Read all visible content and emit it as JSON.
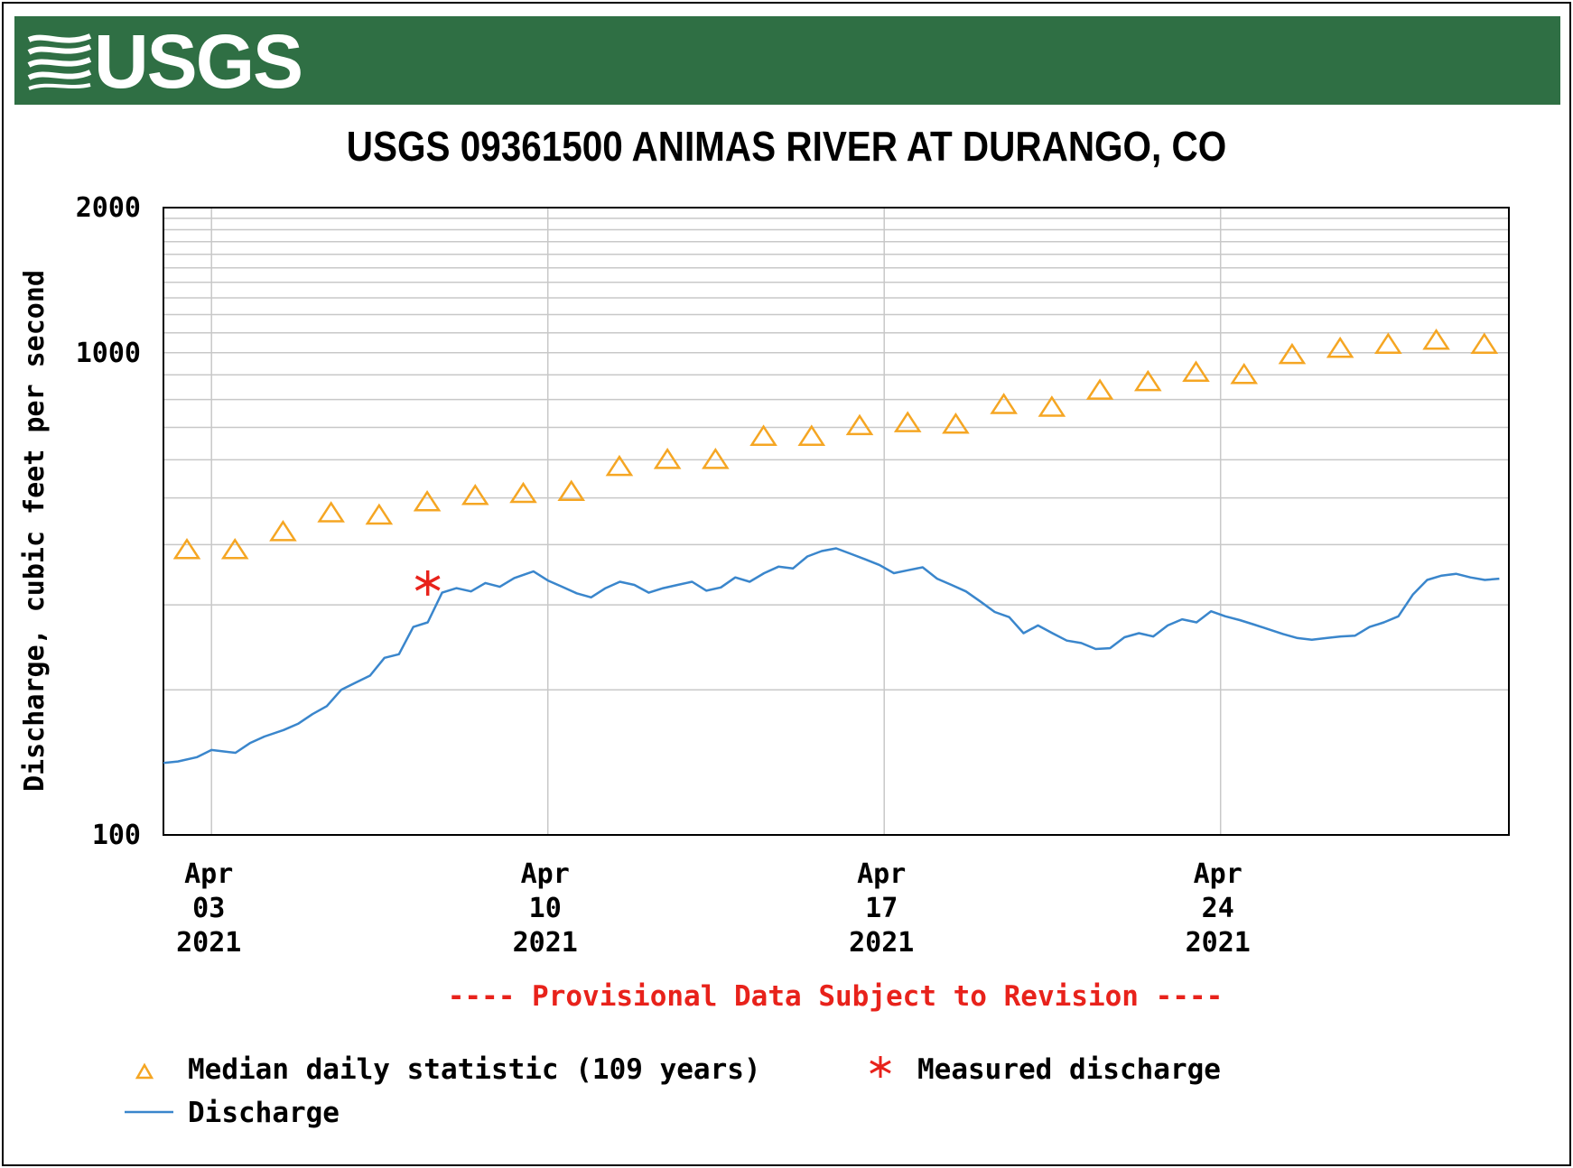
{
  "header": {
    "agency": "USGS"
  },
  "chart_data": {
    "type": "line",
    "title": "USGS 09361500 ANIMAS RIVER AT DURANGO, CO",
    "ylabel": "Discharge, cubic feet per second",
    "xlabel": "",
    "yscale": "log",
    "ylim": [
      100,
      2000
    ],
    "ytick_labels": [
      "100",
      "1000",
      "2000"
    ],
    "xlim": [
      "2021-04-02",
      "2021-04-30"
    ],
    "xticks": [
      {
        "date": "2021-04-03",
        "label": [
          "Apr",
          "03",
          "2021"
        ]
      },
      {
        "date": "2021-04-10",
        "label": [
          "Apr",
          "10",
          "2021"
        ]
      },
      {
        "date": "2021-04-17",
        "label": [
          "Apr",
          "17",
          "2021"
        ]
      },
      {
        "date": "2021-04-24",
        "label": [
          "Apr",
          "24",
          "2021"
        ]
      }
    ],
    "grid": true,
    "notice": "---- Provisional Data Subject to Revision ----",
    "legend_placement": "bottom",
    "colors": {
      "median": "#f5a623",
      "measured": "#e8221b",
      "discharge": "#3a86cc",
      "notice": "#e8221b",
      "banner": "#2f6f44"
    },
    "series": [
      {
        "name": "Median daily statistic (109 years)",
        "kind": "markers",
        "marker": "triangle",
        "x": [
          "2021-04-02",
          "2021-04-03",
          "2021-04-04",
          "2021-04-05",
          "2021-04-06",
          "2021-04-07",
          "2021-04-08",
          "2021-04-09",
          "2021-04-10",
          "2021-04-11",
          "2021-04-12",
          "2021-04-13",
          "2021-04-14",
          "2021-04-15",
          "2021-04-16",
          "2021-04-17",
          "2021-04-18",
          "2021-04-19",
          "2021-04-20",
          "2021-04-21",
          "2021-04-22",
          "2021-04-23",
          "2021-04-24",
          "2021-04-25",
          "2021-04-26",
          "2021-04-27",
          "2021-04-28",
          "2021-04-29"
        ],
        "values": [
          390,
          390,
          425,
          465,
          460,
          490,
          505,
          510,
          515,
          580,
          600,
          600,
          670,
          670,
          705,
          715,
          710,
          780,
          770,
          835,
          870,
          910,
          900,
          990,
          1020,
          1040,
          1060,
          1040
        ]
      },
      {
        "name": "Measured discharge",
        "kind": "markers",
        "marker": "asterisk",
        "x": [
          "2021-04-07.5"
        ],
        "values": [
          333
        ]
      },
      {
        "name": "Discharge",
        "kind": "line",
        "x": [
          "2021-04-02.00",
          "2021-04-02.30",
          "2021-04-02.70",
          "2021-04-03.00",
          "2021-04-03.50",
          "2021-04-03.80",
          "2021-04-04.10",
          "2021-04-04.50",
          "2021-04-04.80",
          "2021-04-05.10",
          "2021-04-05.40",
          "2021-04-05.70",
          "2021-04-06.00",
          "2021-04-06.30",
          "2021-04-06.60",
          "2021-04-06.90",
          "2021-04-07.20",
          "2021-04-07.50",
          "2021-04-07.80",
          "2021-04-08.10",
          "2021-04-08.40",
          "2021-04-08.70",
          "2021-04-09.00",
          "2021-04-09.30",
          "2021-04-09.70",
          "2021-04-10.00",
          "2021-04-10.30",
          "2021-04-10.60",
          "2021-04-10.90",
          "2021-04-11.20",
          "2021-04-11.50",
          "2021-04-11.80",
          "2021-04-12.10",
          "2021-04-12.40",
          "2021-04-12.70",
          "2021-04-13.00",
          "2021-04-13.30",
          "2021-04-13.60",
          "2021-04-13.90",
          "2021-04-14.20",
          "2021-04-14.50",
          "2021-04-14.80",
          "2021-04-15.10",
          "2021-04-15.40",
          "2021-04-15.70",
          "2021-04-16.00",
          "2021-04-16.30",
          "2021-04-16.60",
          "2021-04-16.90",
          "2021-04-17.20",
          "2021-04-17.50",
          "2021-04-17.80",
          "2021-04-18.10",
          "2021-04-18.40",
          "2021-04-18.70",
          "2021-04-19.00",
          "2021-04-19.30",
          "2021-04-19.60",
          "2021-04-19.90",
          "2021-04-20.20",
          "2021-04-20.50",
          "2021-04-20.80",
          "2021-04-21.10",
          "2021-04-21.40",
          "2021-04-21.70",
          "2021-04-22.00",
          "2021-04-22.30",
          "2021-04-22.60",
          "2021-04-22.90",
          "2021-04-23.20",
          "2021-04-23.50",
          "2021-04-23.80",
          "2021-04-24.10",
          "2021-04-24.40",
          "2021-04-24.70",
          "2021-04-25.00",
          "2021-04-25.30",
          "2021-04-25.60",
          "2021-04-25.90",
          "2021-04-26.20",
          "2021-04-26.50",
          "2021-04-26.80",
          "2021-04-27.10",
          "2021-04-27.40",
          "2021-04-27.70",
          "2021-04-28.00",
          "2021-04-28.30",
          "2021-04-28.60",
          "2021-04-28.90",
          "2021-04-29.20",
          "2021-04-29.50",
          "2021-04-29.80"
        ],
        "values": [
          141,
          142,
          145,
          150,
          148,
          155,
          160,
          165,
          170,
          178,
          185,
          200,
          207,
          214,
          233,
          237,
          270,
          276,
          318,
          325,
          320,
          333,
          327,
          341,
          352,
          337,
          327,
          317,
          311,
          325,
          335,
          330,
          318,
          325,
          330,
          335,
          321,
          326,
          342,
          335,
          349,
          360,
          357,
          378,
          388,
          393,
          383,
          373,
          363,
          349,
          354,
          359,
          340,
          330,
          320,
          305,
          290,
          283,
          262,
          272,
          262,
          253,
          250,
          243,
          244,
          257,
          262,
          258,
          272,
          280,
          276,
          291,
          284,
          279,
          273,
          267,
          261,
          256,
          254,
          256,
          258,
          259,
          270,
          276,
          284,
          315,
          338,
          345,
          348,
          342,
          338,
          340
        ]
      }
    ]
  },
  "legend": [
    {
      "label": "Median daily statistic (109 years)"
    },
    {
      "label": "Measured discharge"
    },
    {
      "label": "Discharge"
    }
  ]
}
